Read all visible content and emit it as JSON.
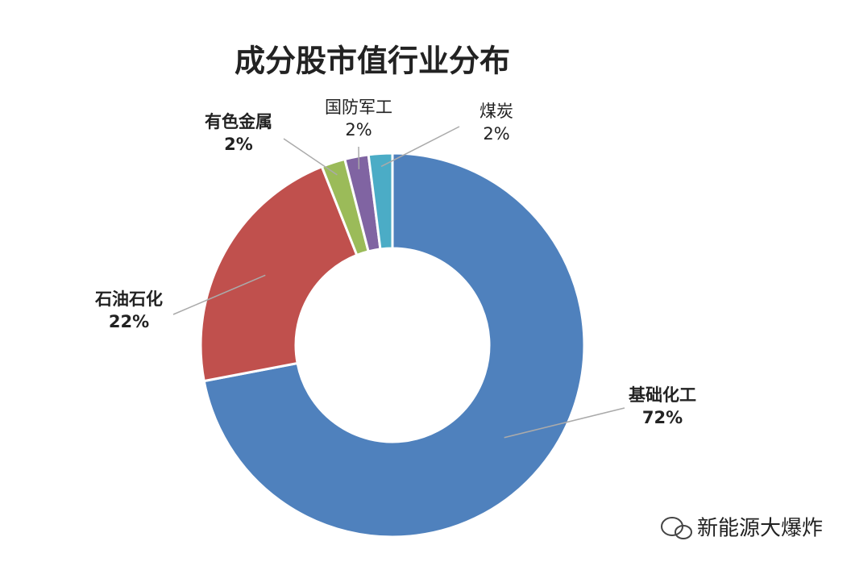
{
  "chart_data": {
    "type": "donut",
    "title": "成分股市值行业分布",
    "categories": [
      "基础化工",
      "石油石化",
      "有色金属",
      "国防军工",
      "煤炭"
    ],
    "values": [
      72,
      22,
      2,
      2,
      2
    ],
    "value_labels": [
      "72%",
      "22%",
      "2%",
      "2%",
      "2%"
    ],
    "colors": [
      "#4f81bd",
      "#c0504d",
      "#9bbb59",
      "#8064a2",
      "#4bacc6"
    ]
  },
  "watermark": "新能源大爆炸"
}
